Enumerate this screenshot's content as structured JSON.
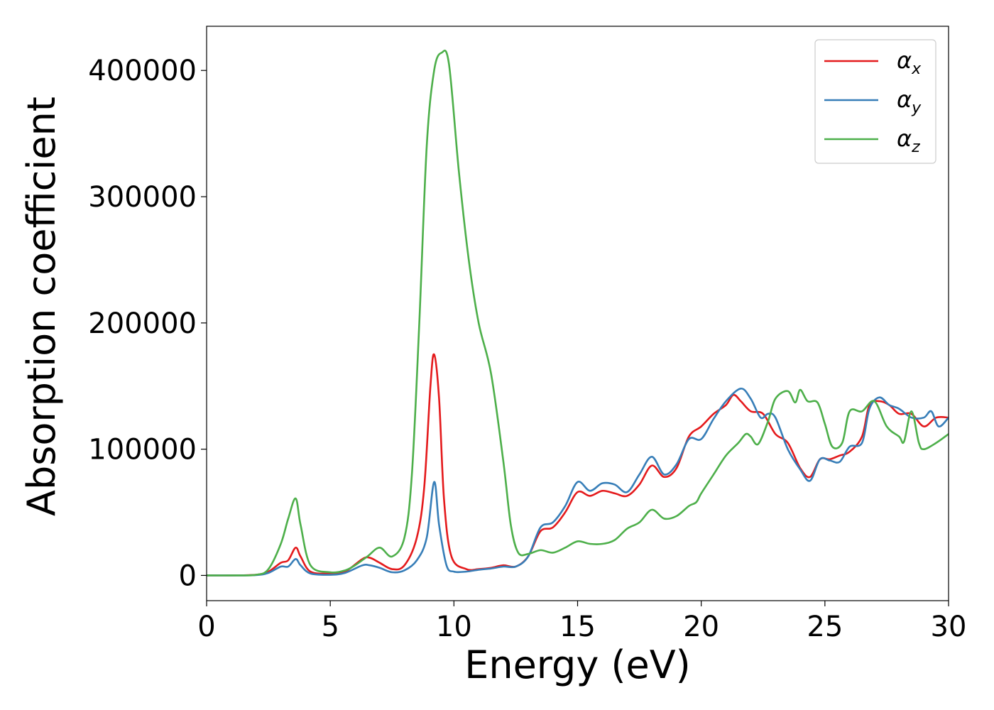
{
  "chart_data": {
    "type": "line",
    "xlabel": "Energy (eV)",
    "ylabel": "Absorption coefficient",
    "xlim": [
      0,
      30
    ],
    "ylim": [
      -20000,
      435000
    ],
    "xticks": [
      0,
      5,
      10,
      15,
      20,
      25,
      30
    ],
    "xtick_labels": [
      "0",
      "5",
      "10",
      "15",
      "20",
      "25",
      "30"
    ],
    "yticks": [
      0,
      100000,
      200000,
      300000,
      400000
    ],
    "ytick_labels": [
      "0",
      "100000",
      "200000",
      "300000",
      "400000"
    ],
    "grid": false,
    "legend_position": "top-right",
    "colors": {
      "alpha_x": "#e41a1c",
      "alpha_y": "#377eb8",
      "alpha_z": "#4daf4a"
    },
    "series": [
      {
        "name": "α_x",
        "legend_symbol": "α",
        "legend_subscript": "x",
        "color": "#e41a1c",
        "points": [
          [
            0,
            0
          ],
          [
            1,
            0
          ],
          [
            2,
            500
          ],
          [
            2.5,
            3000
          ],
          [
            3,
            10000
          ],
          [
            3.3,
            12000
          ],
          [
            3.6,
            22000
          ],
          [
            3.8,
            15000
          ],
          [
            4.2,
            3000
          ],
          [
            5,
            1500
          ],
          [
            5.6,
            3000
          ],
          [
            6.3,
            13000
          ],
          [
            6.6,
            14000
          ],
          [
            7,
            10000
          ],
          [
            7.5,
            5000
          ],
          [
            8,
            8000
          ],
          [
            8.5,
            30000
          ],
          [
            8.8,
            70000
          ],
          [
            9.05,
            150000
          ],
          [
            9.2,
            175000
          ],
          [
            9.4,
            140000
          ],
          [
            9.6,
            60000
          ],
          [
            9.9,
            15000
          ],
          [
            10.5,
            5000
          ],
          [
            11,
            5000
          ],
          [
            11.5,
            6000
          ],
          [
            12,
            8000
          ],
          [
            12.5,
            7000
          ],
          [
            13,
            15000
          ],
          [
            13.5,
            35000
          ],
          [
            14,
            38000
          ],
          [
            14.5,
            50000
          ],
          [
            15,
            66000
          ],
          [
            15.5,
            63000
          ],
          [
            16,
            67000
          ],
          [
            16.5,
            65000
          ],
          [
            17,
            63000
          ],
          [
            17.5,
            72000
          ],
          [
            18,
            87000
          ],
          [
            18.5,
            78000
          ],
          [
            19,
            85000
          ],
          [
            19.5,
            110000
          ],
          [
            20,
            118000
          ],
          [
            20.5,
            128000
          ],
          [
            21,
            135000
          ],
          [
            21.3,
            143000
          ],
          [
            21.6,
            138000
          ],
          [
            22,
            130000
          ],
          [
            22.5,
            128000
          ],
          [
            23,
            112000
          ],
          [
            23.5,
            105000
          ],
          [
            24,
            85000
          ],
          [
            24.4,
            78000
          ],
          [
            24.8,
            92000
          ],
          [
            25.2,
            92000
          ],
          [
            25.6,
            95000
          ],
          [
            26,
            98000
          ],
          [
            26.5,
            110000
          ],
          [
            26.8,
            135000
          ],
          [
            27.2,
            138000
          ],
          [
            27.6,
            135000
          ],
          [
            28,
            128000
          ],
          [
            28.5,
            128000
          ],
          [
            29,
            118000
          ],
          [
            29.5,
            125000
          ],
          [
            30,
            125000
          ]
        ]
      },
      {
        "name": "α_y",
        "legend_symbol": "α",
        "legend_subscript": "y",
        "color": "#377eb8",
        "points": [
          [
            0,
            0
          ],
          [
            1,
            0
          ],
          [
            2,
            300
          ],
          [
            2.5,
            2000
          ],
          [
            3,
            7000
          ],
          [
            3.3,
            7000
          ],
          [
            3.6,
            13000
          ],
          [
            3.8,
            8000
          ],
          [
            4.2,
            1500
          ],
          [
            5,
            500
          ],
          [
            5.6,
            2000
          ],
          [
            6.3,
            8000
          ],
          [
            6.6,
            8000
          ],
          [
            7,
            6000
          ],
          [
            7.5,
            2500
          ],
          [
            8,
            4000
          ],
          [
            8.5,
            12000
          ],
          [
            8.9,
            30000
          ],
          [
            9.2,
            74000
          ],
          [
            9.4,
            40000
          ],
          [
            9.7,
            8000
          ],
          [
            10,
            3000
          ],
          [
            10.5,
            3000
          ],
          [
            11,
            4500
          ],
          [
            11.5,
            5500
          ],
          [
            12,
            7000
          ],
          [
            12.5,
            7000
          ],
          [
            13,
            15000
          ],
          [
            13.5,
            38000
          ],
          [
            14,
            42000
          ],
          [
            14.5,
            55000
          ],
          [
            15,
            74000
          ],
          [
            15.5,
            67000
          ],
          [
            16,
            73000
          ],
          [
            16.5,
            72000
          ],
          [
            17,
            66000
          ],
          [
            17.5,
            80000
          ],
          [
            18,
            94000
          ],
          [
            18.5,
            80000
          ],
          [
            19,
            88000
          ],
          [
            19.5,
            108000
          ],
          [
            20,
            108000
          ],
          [
            20.5,
            124000
          ],
          [
            21,
            138000
          ],
          [
            21.6,
            148000
          ],
          [
            22,
            140000
          ],
          [
            22.4,
            125000
          ],
          [
            22.7,
            128000
          ],
          [
            23,
            125000
          ],
          [
            23.5,
            100000
          ],
          [
            24,
            84000
          ],
          [
            24.4,
            75000
          ],
          [
            24.8,
            92000
          ],
          [
            25.2,
            91000
          ],
          [
            25.6,
            90000
          ],
          [
            26,
            102000
          ],
          [
            26.5,
            105000
          ],
          [
            26.8,
            132000
          ],
          [
            27.2,
            141000
          ],
          [
            27.6,
            135000
          ],
          [
            28,
            132000
          ],
          [
            28.5,
            125000
          ],
          [
            29,
            125000
          ],
          [
            29.3,
            130000
          ],
          [
            29.6,
            118000
          ],
          [
            30,
            125000
          ]
        ]
      },
      {
        "name": "α_z",
        "legend_symbol": "α",
        "legend_subscript": "z",
        "color": "#4daf4a",
        "points": [
          [
            0,
            0
          ],
          [
            1,
            0
          ],
          [
            2,
            500
          ],
          [
            2.5,
            5000
          ],
          [
            3,
            25000
          ],
          [
            3.3,
            45000
          ],
          [
            3.6,
            61000
          ],
          [
            3.8,
            40000
          ],
          [
            4.2,
            8000
          ],
          [
            5,
            2500
          ],
          [
            5.6,
            4000
          ],
          [
            6,
            8000
          ],
          [
            6.5,
            15000
          ],
          [
            7,
            22000
          ],
          [
            7.5,
            15000
          ],
          [
            8,
            30000
          ],
          [
            8.3,
            80000
          ],
          [
            8.6,
            200000
          ],
          [
            8.9,
            340000
          ],
          [
            9.2,
            400000
          ],
          [
            9.5,
            414000
          ],
          [
            9.8,
            405000
          ],
          [
            10.2,
            320000
          ],
          [
            10.6,
            250000
          ],
          [
            11,
            200000
          ],
          [
            11.5,
            160000
          ],
          [
            12,
            90000
          ],
          [
            12.3,
            40000
          ],
          [
            12.6,
            18000
          ],
          [
            13,
            17000
          ],
          [
            13.5,
            20000
          ],
          [
            14,
            18000
          ],
          [
            14.5,
            22000
          ],
          [
            15,
            27000
          ],
          [
            15.5,
            25000
          ],
          [
            16,
            25000
          ],
          [
            16.5,
            28000
          ],
          [
            17,
            37000
          ],
          [
            17.5,
            42000
          ],
          [
            18,
            52000
          ],
          [
            18.5,
            45000
          ],
          [
            19,
            47000
          ],
          [
            19.5,
            55000
          ],
          [
            19.8,
            58000
          ],
          [
            20,
            65000
          ],
          [
            20.5,
            80000
          ],
          [
            21,
            95000
          ],
          [
            21.5,
            105000
          ],
          [
            21.8,
            112000
          ],
          [
            22,
            110000
          ],
          [
            22.3,
            104000
          ],
          [
            22.7,
            122000
          ],
          [
            23,
            140000
          ],
          [
            23.5,
            146000
          ],
          [
            23.8,
            137000
          ],
          [
            24,
            147000
          ],
          [
            24.3,
            138000
          ],
          [
            24.7,
            137000
          ],
          [
            25,
            120000
          ],
          [
            25.3,
            102000
          ],
          [
            25.7,
            105000
          ],
          [
            26,
            130000
          ],
          [
            26.5,
            130000
          ],
          [
            27,
            138000
          ],
          [
            27.5,
            118000
          ],
          [
            28,
            110000
          ],
          [
            28.2,
            106000
          ],
          [
            28.5,
            130000
          ],
          [
            28.8,
            105000
          ],
          [
            29,
            100000
          ],
          [
            29.5,
            105000
          ],
          [
            30,
            112000
          ]
        ]
      }
    ]
  }
}
